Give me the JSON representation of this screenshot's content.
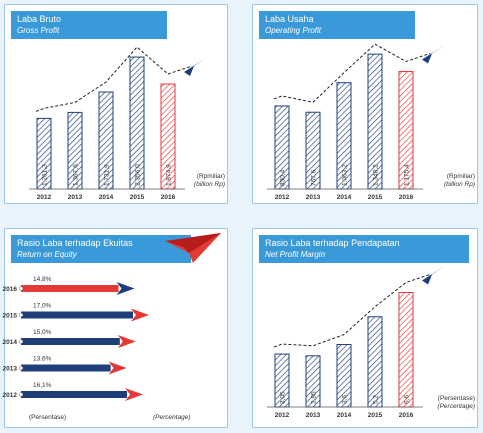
{
  "colors": {
    "header_bg": "#3a9ad9",
    "bar_blue": "#1f3f7a",
    "bar_red": "#e23a3a",
    "arrow_blue": "#1f3f7a",
    "arrow_red": "#e53935"
  },
  "panels": {
    "gross_profit": {
      "title": "Laba Bruto",
      "subtitle": "Gross Profit",
      "unit_id": "(Rpmiliar)",
      "unit_en": "(billion Rp)"
    },
    "operating_profit": {
      "title": "Laba Usaha",
      "subtitle": "Operating Profit",
      "unit_id": "(Rpmiliar)",
      "unit_en": "(billion Rp)"
    },
    "roe": {
      "title": "Rasio Laba terhadap Ekuitas",
      "subtitle": "Return on Equity",
      "footer_id": "(Persentase)",
      "footer_en": "(Percentage)"
    },
    "npm": {
      "title": "Rasio Laba terhadap Pendapatan",
      "subtitle": "Net Profit Margin",
      "unit_id": "(Persentase)",
      "unit_en": "(Percentage)"
    }
  },
  "chart_data": [
    {
      "type": "bar",
      "title": "Laba Bruto",
      "subtitle": "Gross Profit",
      "categories": [
        "2012",
        "2013",
        "2014",
        "2015",
        "2016"
      ],
      "labels": [
        "1.261,3",
        "1.367,6",
        "1.731,9",
        "2.356,0",
        "1.874,9"
      ],
      "values": [
        1261.3,
        1367.6,
        1731.9,
        2356.0,
        1874.9
      ],
      "highlight": "2016",
      "ylim": [
        0,
        2500
      ]
    },
    {
      "type": "bar",
      "title": "Laba Usaha",
      "subtitle": "Operating Profit",
      "categories": [
        "2012",
        "2013",
        "2014",
        "2015",
        "2016"
      ],
      "labels": [
        "830,4",
        "767,6",
        "1.063,2",
        "1.348,2",
        "1.175,4"
      ],
      "values": [
        830.4,
        767.6,
        1063.2,
        1348.2,
        1175.4
      ],
      "highlight": "2016",
      "ylim": [
        0,
        1400
      ]
    },
    {
      "type": "bar",
      "orientation": "horizontal",
      "title": "Rasio Laba terhadap Ekuitas",
      "subtitle": "Return on Equity",
      "categories": [
        "2016",
        "2015",
        "2014",
        "2013",
        "2012"
      ],
      "labels": [
        "14,8",
        "17,0",
        "15,0",
        "13,6",
        "16,1"
      ],
      "values": [
        14.8,
        17.0,
        15.0,
        13.6,
        16.1
      ],
      "highlight": "2016",
      "xlim": [
        0,
        17
      ]
    },
    {
      "type": "bar",
      "title": "Rasio Laba terhadap Pendapatan",
      "subtitle": "Net Profit Margin",
      "categories": [
        "2012",
        "2013",
        "2014",
        "2015",
        "2016"
      ],
      "labels": [
        "3,05",
        "2,95",
        "3,6",
        "5,2",
        "6,6"
      ],
      "values": [
        3.05,
        2.95,
        3.6,
        5.2,
        6.6
      ],
      "highlight": "2016",
      "ylim": [
        0,
        6.8
      ]
    }
  ]
}
